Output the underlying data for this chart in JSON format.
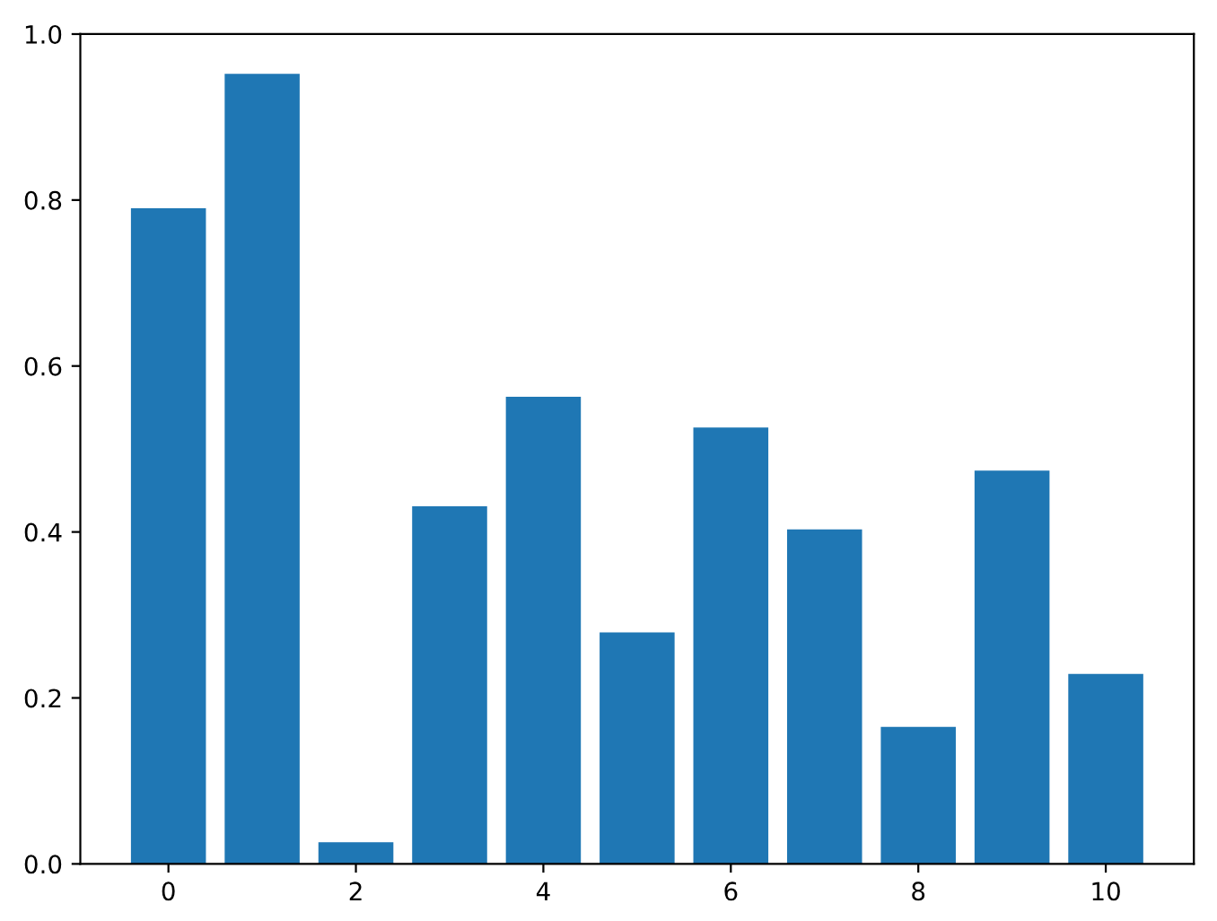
{
  "chart_data": {
    "type": "bar",
    "x": [
      0,
      1,
      2,
      3,
      4,
      5,
      6,
      7,
      8,
      9,
      10
    ],
    "values": [
      0.79,
      0.952,
      0.026,
      0.431,
      0.563,
      0.279,
      0.526,
      0.403,
      0.165,
      0.474,
      0.229
    ],
    "color": "#1f77b4",
    "xlim": [
      -0.94,
      10.94
    ],
    "xticks": [
      0,
      2,
      4,
      6,
      8,
      10
    ],
    "ylim": [
      0,
      1.0
    ],
    "yticks": [
      {
        "value": 0,
        "label": "0.0"
      },
      {
        "value": 0.2,
        "label": "0.2"
      },
      {
        "value": 0.4,
        "label": "0.4"
      },
      {
        "value": 0.6,
        "label": "0.6"
      },
      {
        "value": 0.8,
        "label": "0.8"
      },
      {
        "value": 1.0,
        "label": "1.0"
      }
    ],
    "grid": false,
    "legend": false
  }
}
